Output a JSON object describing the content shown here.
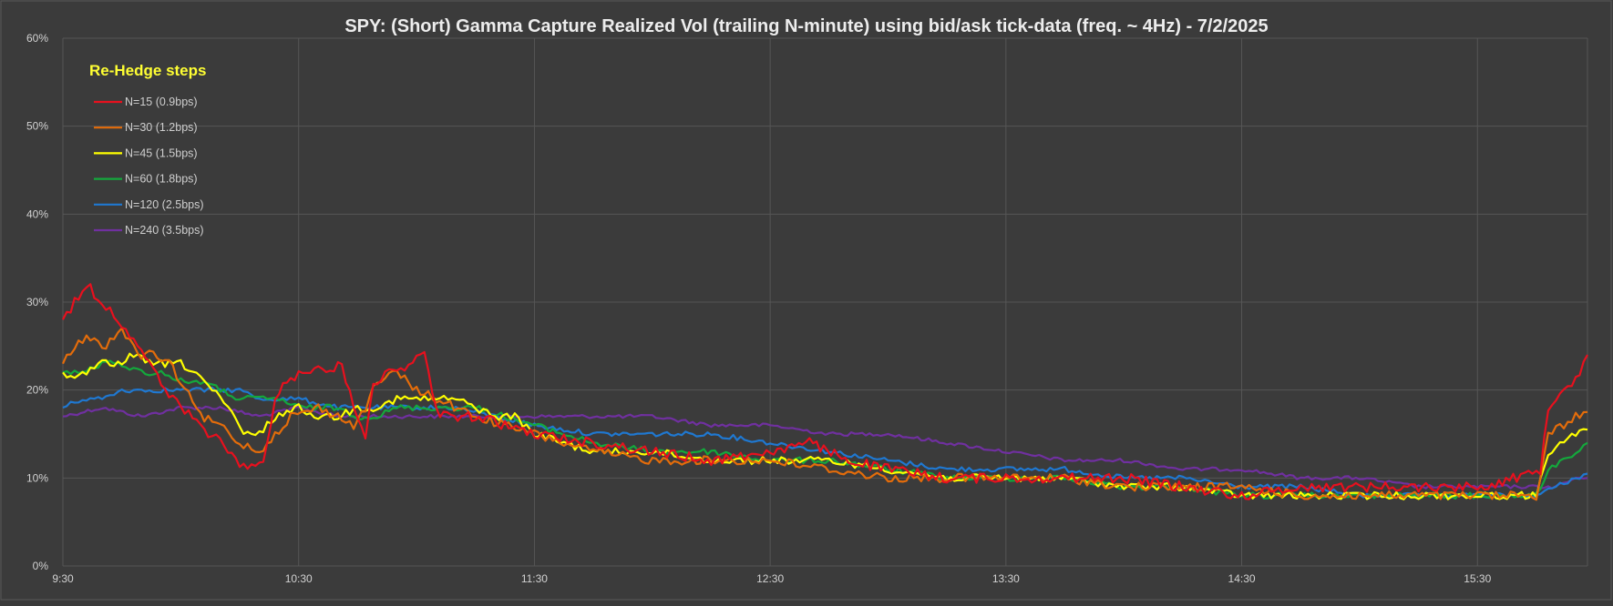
{
  "chart_data": {
    "type": "line",
    "title": "SPY: (Short) Gamma Capture Realized Vol (trailing N-minute) using bid/ask tick-data (freq. ~ 4Hz) - 7/2/2025",
    "xlabel": "",
    "ylabel": "",
    "ylim": [
      0,
      0.6
    ],
    "yticks": [
      "0%",
      "10%",
      "20%",
      "30%",
      "40%",
      "50%",
      "60%"
    ],
    "xlim": [
      "9:30",
      "15:58"
    ],
    "xticks": [
      "9:30",
      "10:30",
      "11:30",
      "12:30",
      "13:30",
      "14:30",
      "15:30"
    ],
    "grid": true,
    "legend_title": "Re-Hedge steps",
    "legend_position": "top-left",
    "background": "#3b3b3b",
    "series": [
      {
        "name": "N=15 (0.9bps)",
        "color": "#e8101e",
        "points": [
          [
            "9:30",
            0.28
          ],
          [
            "9:33",
            0.3
          ],
          [
            "9:36",
            0.32
          ],
          [
            "9:40",
            0.3
          ],
          [
            "9:44",
            0.28
          ],
          [
            "9:48",
            0.26
          ],
          [
            "9:52",
            0.23
          ],
          [
            "9:56",
            0.2
          ],
          [
            "10:00",
            0.18
          ],
          [
            "10:05",
            0.16
          ],
          [
            "10:10",
            0.14
          ],
          [
            "10:14",
            0.12
          ],
          [
            "10:18",
            0.11
          ],
          [
            "10:21",
            0.12
          ],
          [
            "10:24",
            0.19
          ],
          [
            "10:27",
            0.21
          ],
          [
            "10:31",
            0.22
          ],
          [
            "10:35",
            0.23
          ],
          [
            "10:38",
            0.22
          ],
          [
            "10:41",
            0.23
          ],
          [
            "10:44",
            0.18
          ],
          [
            "10:47",
            0.15
          ],
          [
            "10:49",
            0.21
          ],
          [
            "10:54",
            0.22
          ],
          [
            "10:58",
            0.23
          ],
          [
            "11:02",
            0.24
          ],
          [
            "11:04",
            0.2
          ],
          [
            "11:06",
            0.17
          ],
          [
            "11:15",
            0.17
          ],
          [
            "11:30",
            0.15
          ],
          [
            "11:45",
            0.14
          ],
          [
            "12:00",
            0.13
          ],
          [
            "12:15",
            0.12
          ],
          [
            "12:30",
            0.13
          ],
          [
            "12:40",
            0.14
          ],
          [
            "12:50",
            0.12
          ],
          [
            "13:00",
            0.11
          ],
          [
            "13:15",
            0.1
          ],
          [
            "13:30",
            0.1
          ],
          [
            "13:45",
            0.1
          ],
          [
            "14:00",
            0.1
          ],
          [
            "14:15",
            0.09
          ],
          [
            "14:30",
            0.08
          ],
          [
            "14:45",
            0.09
          ],
          [
            "15:00",
            0.09
          ],
          [
            "15:15",
            0.09
          ],
          [
            "15:30",
            0.09
          ],
          [
            "15:40",
            0.1
          ],
          [
            "15:46",
            0.11
          ],
          [
            "15:48",
            0.18
          ],
          [
            "15:51",
            0.2
          ],
          [
            "15:54",
            0.21
          ],
          [
            "15:56",
            0.22
          ],
          [
            "15:58",
            0.24
          ]
        ]
      },
      {
        "name": "N=30 (1.2bps)",
        "color": "#e46c0a",
        "points": [
          [
            "9:30",
            0.23
          ],
          [
            "9:33",
            0.25
          ],
          [
            "9:37",
            0.26
          ],
          [
            "9:41",
            0.25
          ],
          [
            "9:45",
            0.27
          ],
          [
            "9:49",
            0.24
          ],
          [
            "9:53",
            0.24
          ],
          [
            "9:57",
            0.23
          ],
          [
            "10:00",
            0.21
          ],
          [
            "10:05",
            0.17
          ],
          [
            "10:10",
            0.16
          ],
          [
            "10:15",
            0.14
          ],
          [
            "10:20",
            0.13
          ],
          [
            "10:24",
            0.15
          ],
          [
            "10:28",
            0.17
          ],
          [
            "10:35",
            0.18
          ],
          [
            "10:40",
            0.17
          ],
          [
            "10:44",
            0.16
          ],
          [
            "10:47",
            0.18
          ],
          [
            "10:50",
            0.21
          ],
          [
            "10:55",
            0.22
          ],
          [
            "11:00",
            0.2
          ],
          [
            "11:05",
            0.19
          ],
          [
            "11:15",
            0.17
          ],
          [
            "11:30",
            0.15
          ],
          [
            "11:45",
            0.13
          ],
          [
            "12:00",
            0.12
          ],
          [
            "12:15",
            0.12
          ],
          [
            "12:30",
            0.12
          ],
          [
            "12:45",
            0.11
          ],
          [
            "13:00",
            0.1
          ],
          [
            "13:15",
            0.1
          ],
          [
            "13:30",
            0.1
          ],
          [
            "13:45",
            0.1
          ],
          [
            "14:00",
            0.09
          ],
          [
            "14:15",
            0.09
          ],
          [
            "14:30",
            0.09
          ],
          [
            "14:45",
            0.08
          ],
          [
            "15:00",
            0.08
          ],
          [
            "15:15",
            0.08
          ],
          [
            "15:30",
            0.08
          ],
          [
            "15:45",
            0.08
          ],
          [
            "15:48",
            0.15
          ],
          [
            "15:52",
            0.16
          ],
          [
            "15:55",
            0.17
          ],
          [
            "15:58",
            0.175
          ]
        ]
      },
      {
        "name": "N=45 (1.5bps)",
        "color": "#ffff00",
        "points": [
          [
            "9:30",
            0.22
          ],
          [
            "9:33",
            0.21
          ],
          [
            "9:36",
            0.22
          ],
          [
            "9:40",
            0.23
          ],
          [
            "9:44",
            0.23
          ],
          [
            "9:48",
            0.24
          ],
          [
            "9:52",
            0.23
          ],
          [
            "9:56",
            0.23
          ],
          [
            "10:00",
            0.23
          ],
          [
            "10:04",
            0.22
          ],
          [
            "10:08",
            0.2
          ],
          [
            "10:12",
            0.18
          ],
          [
            "10:16",
            0.15
          ],
          [
            "10:20",
            0.15
          ],
          [
            "10:24",
            0.17
          ],
          [
            "10:30",
            0.18
          ],
          [
            "10:35",
            0.17
          ],
          [
            "10:40",
            0.17
          ],
          [
            "10:45",
            0.18
          ],
          [
            "10:50",
            0.18
          ],
          [
            "10:55",
            0.19
          ],
          [
            "11:00",
            0.19
          ],
          [
            "11:05",
            0.19
          ],
          [
            "11:10",
            0.19
          ],
          [
            "11:15",
            0.18
          ],
          [
            "11:20",
            0.17
          ],
          [
            "11:25",
            0.17
          ],
          [
            "11:30",
            0.15
          ],
          [
            "11:45",
            0.13
          ],
          [
            "12:00",
            0.13
          ],
          [
            "12:15",
            0.12
          ],
          [
            "12:30",
            0.12
          ],
          [
            "12:45",
            0.12
          ],
          [
            "13:00",
            0.11
          ],
          [
            "13:15",
            0.1
          ],
          [
            "13:30",
            0.1
          ],
          [
            "13:45",
            0.1
          ],
          [
            "14:00",
            0.09
          ],
          [
            "14:15",
            0.09
          ],
          [
            "14:30",
            0.08
          ],
          [
            "14:45",
            0.08
          ],
          [
            "15:00",
            0.08
          ],
          [
            "15:15",
            0.08
          ],
          [
            "15:30",
            0.08
          ],
          [
            "15:45",
            0.08
          ],
          [
            "15:48",
            0.13
          ],
          [
            "15:52",
            0.14
          ],
          [
            "15:55",
            0.15
          ],
          [
            "15:58",
            0.155
          ]
        ]
      },
      {
        "name": "N=60 (1.8bps)",
        "color": "#14a83c",
        "points": [
          [
            "9:30",
            0.22
          ],
          [
            "9:35",
            0.22
          ],
          [
            "9:40",
            0.23
          ],
          [
            "9:45",
            0.23
          ],
          [
            "9:50",
            0.22
          ],
          [
            "9:55",
            0.22
          ],
          [
            "10:00",
            0.21
          ],
          [
            "10:05",
            0.21
          ],
          [
            "10:10",
            0.2
          ],
          [
            "10:15",
            0.19
          ],
          [
            "10:20",
            0.19
          ],
          [
            "10:25",
            0.19
          ],
          [
            "10:30",
            0.18
          ],
          [
            "10:35",
            0.18
          ],
          [
            "10:40",
            0.18
          ],
          [
            "10:45",
            0.17
          ],
          [
            "10:50",
            0.17
          ],
          [
            "10:55",
            0.18
          ],
          [
            "11:00",
            0.18
          ],
          [
            "11:15",
            0.18
          ],
          [
            "11:30",
            0.16
          ],
          [
            "11:45",
            0.14
          ],
          [
            "12:00",
            0.13
          ],
          [
            "12:15",
            0.13
          ],
          [
            "12:30",
            0.12
          ],
          [
            "12:45",
            0.12
          ],
          [
            "13:00",
            0.11
          ],
          [
            "13:15",
            0.1
          ],
          [
            "13:30",
            0.1
          ],
          [
            "13:45",
            0.1
          ],
          [
            "14:00",
            0.09
          ],
          [
            "14:15",
            0.09
          ],
          [
            "14:30",
            0.08
          ],
          [
            "14:45",
            0.08
          ],
          [
            "15:00",
            0.08
          ],
          [
            "15:15",
            0.08
          ],
          [
            "15:30",
            0.08
          ],
          [
            "15:45",
            0.08
          ],
          [
            "15:48",
            0.11
          ],
          [
            "15:52",
            0.12
          ],
          [
            "15:55",
            0.13
          ],
          [
            "15:58",
            0.14
          ]
        ]
      },
      {
        "name": "N=120 (2.5bps)",
        "color": "#1f78d1",
        "points": [
          [
            "9:30",
            0.18
          ],
          [
            "9:35",
            0.19
          ],
          [
            "9:40",
            0.19
          ],
          [
            "9:45",
            0.2
          ],
          [
            "9:50",
            0.2
          ],
          [
            "9:55",
            0.2
          ],
          [
            "10:00",
            0.2
          ],
          [
            "10:05",
            0.2
          ],
          [
            "10:10",
            0.2
          ],
          [
            "10:15",
            0.2
          ],
          [
            "10:20",
            0.19
          ],
          [
            "10:25",
            0.19
          ],
          [
            "10:30",
            0.19
          ],
          [
            "10:40",
            0.18
          ],
          [
            "10:50",
            0.18
          ],
          [
            "11:00",
            0.18
          ],
          [
            "11:10",
            0.18
          ],
          [
            "11:20",
            0.17
          ],
          [
            "11:30",
            0.16
          ],
          [
            "11:45",
            0.15
          ],
          [
            "12:00",
            0.15
          ],
          [
            "12:15",
            0.15
          ],
          [
            "12:30",
            0.14
          ],
          [
            "12:45",
            0.13
          ],
          [
            "13:00",
            0.12
          ],
          [
            "13:15",
            0.11
          ],
          [
            "13:30",
            0.11
          ],
          [
            "13:45",
            0.11
          ],
          [
            "14:00",
            0.1
          ],
          [
            "14:15",
            0.1
          ],
          [
            "14:30",
            0.09
          ],
          [
            "14:45",
            0.09
          ],
          [
            "15:00",
            0.08
          ],
          [
            "15:15",
            0.08
          ],
          [
            "15:30",
            0.08
          ],
          [
            "15:45",
            0.08
          ],
          [
            "15:50",
            0.09
          ],
          [
            "15:55",
            0.1
          ],
          [
            "15:58",
            0.105
          ]
        ]
      },
      {
        "name": "N=240 (3.5bps)",
        "color": "#7030a0",
        "points": [
          [
            "9:30",
            0.17
          ],
          [
            "9:40",
            0.18
          ],
          [
            "9:50",
            0.17
          ],
          [
            "10:00",
            0.18
          ],
          [
            "10:10",
            0.18
          ],
          [
            "10:20",
            0.17
          ],
          [
            "10:30",
            0.18
          ],
          [
            "10:40",
            0.17
          ],
          [
            "10:50",
            0.17
          ],
          [
            "11:00",
            0.17
          ],
          [
            "11:10",
            0.17
          ],
          [
            "11:20",
            0.17
          ],
          [
            "11:30",
            0.17
          ],
          [
            "11:45",
            0.17
          ],
          [
            "12:00",
            0.17
          ],
          [
            "12:15",
            0.16
          ],
          [
            "12:30",
            0.16
          ],
          [
            "12:45",
            0.15
          ],
          [
            "13:00",
            0.15
          ],
          [
            "13:15",
            0.14
          ],
          [
            "13:30",
            0.13
          ],
          [
            "13:45",
            0.12
          ],
          [
            "14:00",
            0.12
          ],
          [
            "14:15",
            0.11
          ],
          [
            "14:30",
            0.11
          ],
          [
            "14:45",
            0.1
          ],
          [
            "15:00",
            0.1
          ],
          [
            "15:15",
            0.09
          ],
          [
            "15:30",
            0.09
          ],
          [
            "15:45",
            0.09
          ],
          [
            "15:50",
            0.09
          ],
          [
            "15:55",
            0.1
          ],
          [
            "15:58",
            0.1
          ]
        ]
      }
    ]
  }
}
